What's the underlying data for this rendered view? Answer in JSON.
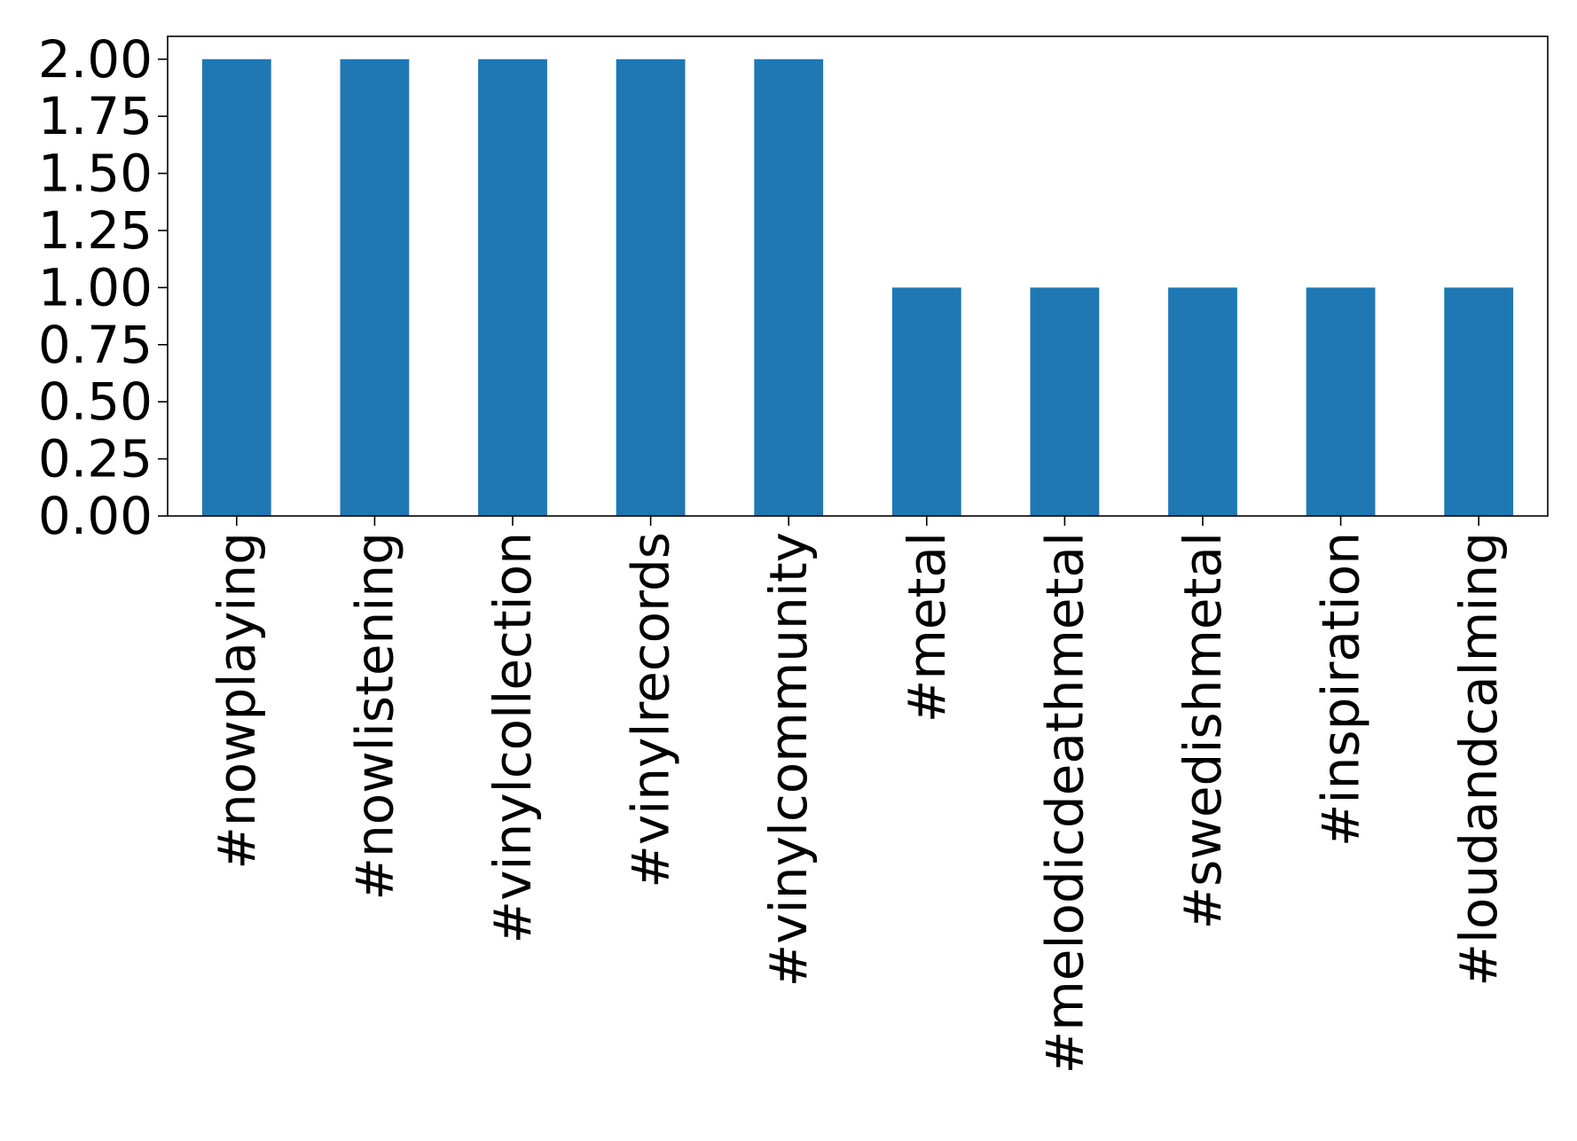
{
  "chart_data": {
    "type": "bar",
    "title": "",
    "xlabel": "",
    "ylabel": "",
    "categories": [
      "#nowplaying",
      "#nowlistening",
      "#vinylcollection",
      "#vinylrecords",
      "#vinylcommunity",
      "#metal",
      "#melodicdeathmetal",
      "#swedishmetal",
      "#inspiration",
      "#loudandcalming"
    ],
    "values": [
      2,
      2,
      2,
      2,
      2,
      1,
      1,
      1,
      1,
      1
    ],
    "ylim": [
      0,
      2.1
    ],
    "yticks": [
      "0.00",
      "0.25",
      "0.50",
      "0.75",
      "1.00",
      "1.25",
      "1.50",
      "1.75",
      "2.00"
    ],
    "grid": false,
    "legend": "none",
    "bar_color": "#1f77b4"
  }
}
